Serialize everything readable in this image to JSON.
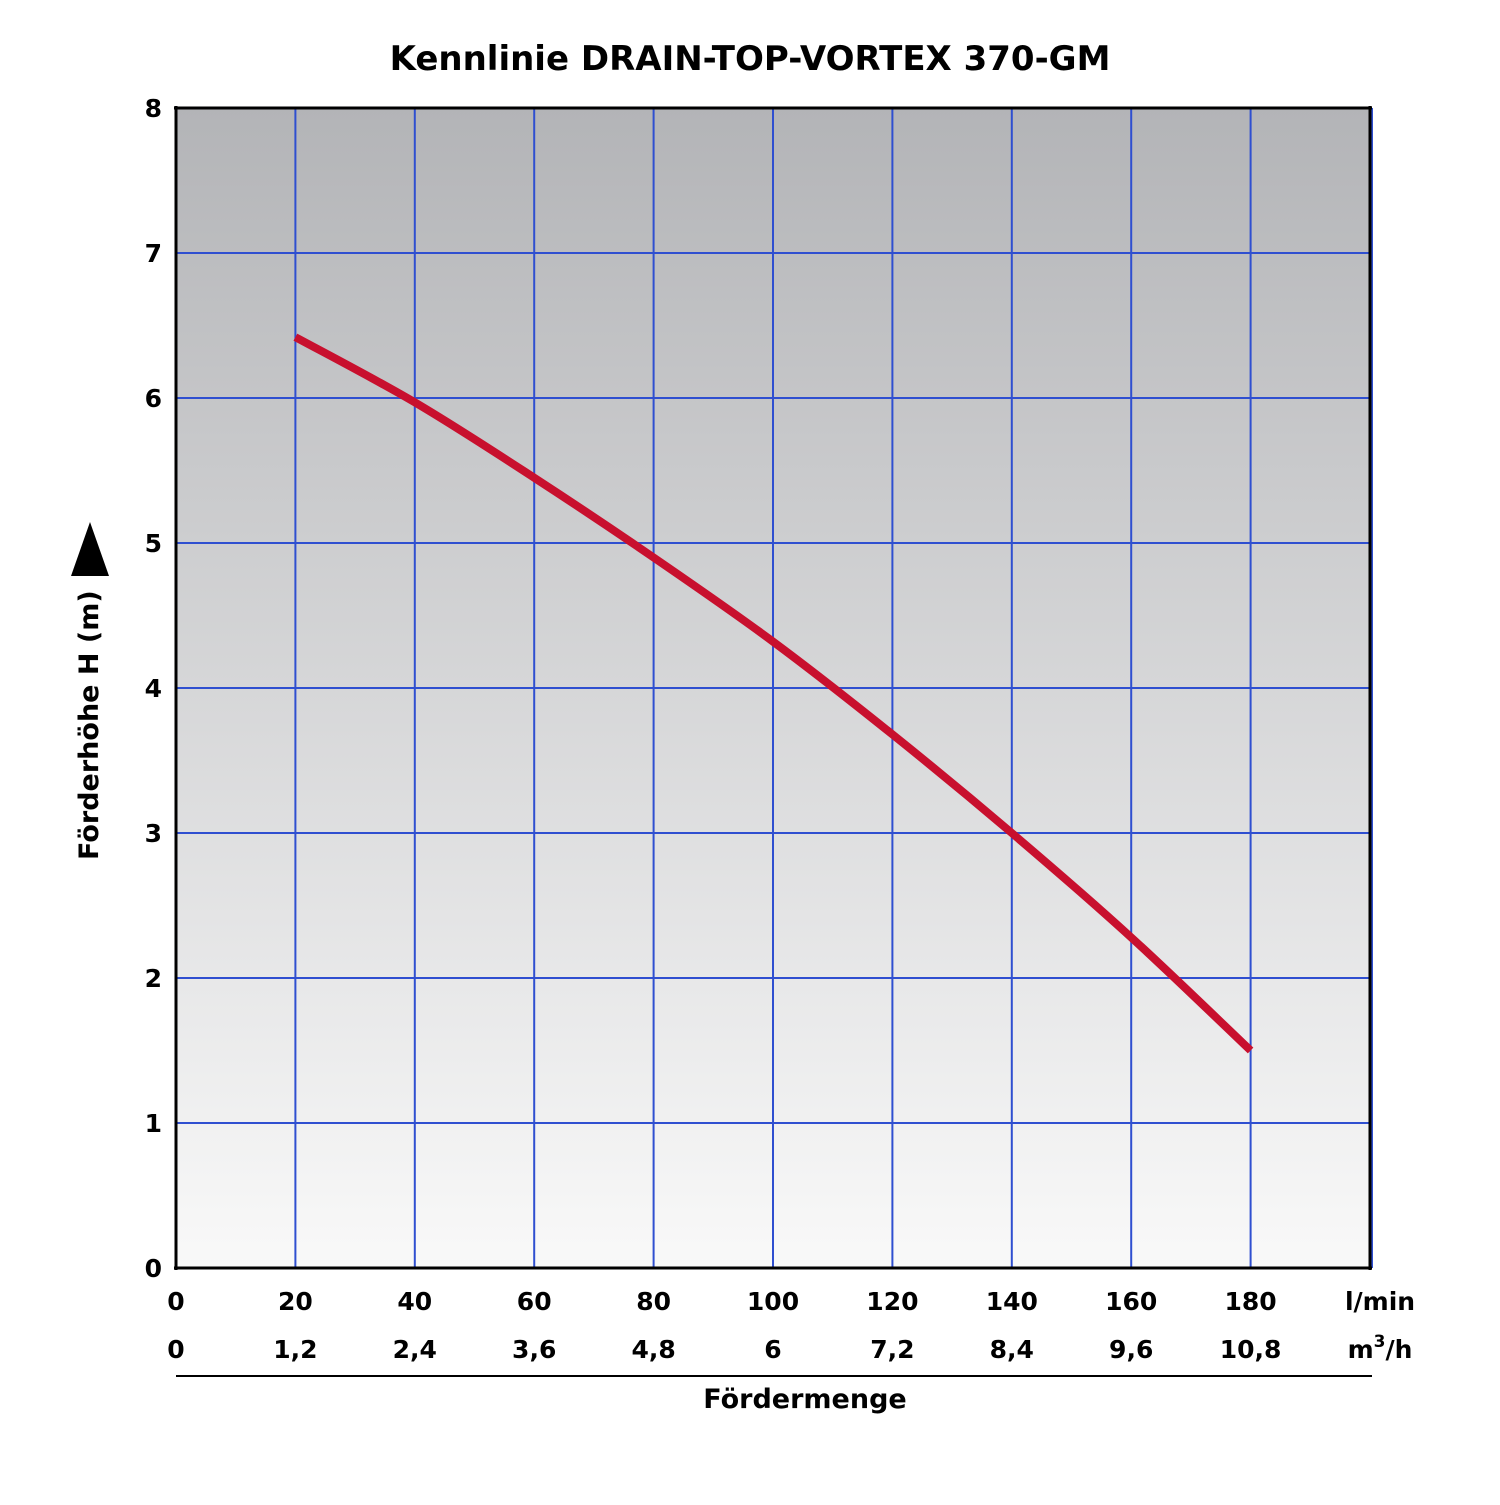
{
  "chart_data": {
    "type": "line",
    "title": "Kennlinie DRAIN-TOP-VORTEX 370-GM",
    "xlabel": "Fördermenge",
    "ylabel": "Förderhöhe H (m)",
    "xlim": [
      0,
      200
    ],
    "ylim": [
      0,
      8
    ],
    "grid": true,
    "x_ticks": [
      0,
      20,
      40,
      60,
      80,
      100,
      120,
      140,
      160,
      180
    ],
    "x_tick_labels_lmin": [
      "0",
      "20",
      "40",
      "60",
      "80",
      "100",
      "120",
      "140",
      "160",
      "180"
    ],
    "x_tick_labels_m3h": [
      "0",
      "1,2",
      "2,4",
      "3,6",
      "4,8",
      "6",
      "7,2",
      "8,4",
      "9,6",
      "10,8"
    ],
    "x_unit_primary": "l/min",
    "x_unit_secondary_base": "m",
    "x_unit_secondary_sup": "3",
    "x_unit_secondary_tail": "/h",
    "y_ticks": [
      0,
      1,
      2,
      3,
      4,
      5,
      6,
      7,
      8
    ],
    "y_tick_labels": [
      "0",
      "1",
      "2",
      "3",
      "4",
      "5",
      "6",
      "7",
      "8"
    ],
    "series": [
      {
        "x": [
          20,
          40,
          60,
          80,
          100,
          120,
          140,
          160,
          180
        ],
        "y": [
          6.42,
          5.97,
          5.45,
          4.9,
          4.32,
          3.68,
          3.0,
          2.28,
          1.5
        ]
      }
    ],
    "colors": {
      "line": "#c8102e",
      "grid": "#2f4fd0",
      "frame": "#000000",
      "bg_top": "#b3b4b7",
      "bg_bottom": "#f9f9f9"
    }
  }
}
